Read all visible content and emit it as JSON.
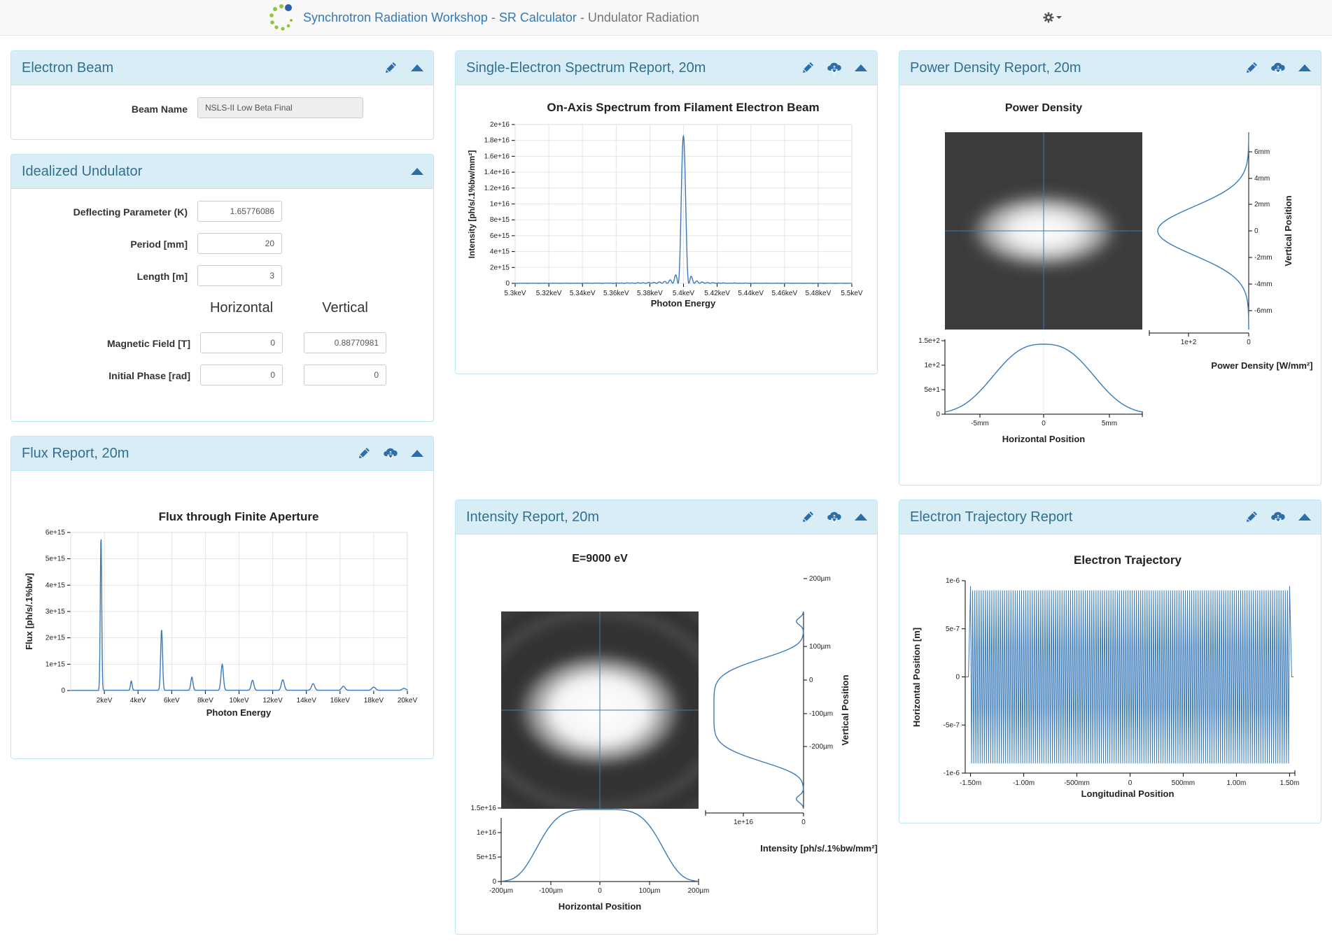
{
  "nav": {
    "app_title": "Synchrotron Radiation Workshop",
    "sep": "-",
    "calc_title": "SR Calculator",
    "sep2": "-",
    "page_title": "Undulator Radiation"
  },
  "electron_beam": {
    "title": "Electron Beam",
    "beam_name_label": "Beam Name",
    "beam_name_value": "NSLS-II Low Beta Final"
  },
  "undulator": {
    "title": "Idealized Undulator",
    "k_label": "Deflecting Parameter (K)",
    "k_value": "1.65776086",
    "period_label": "Period [mm]",
    "period_value": "20",
    "length_label": "Length [m]",
    "length_value": "3",
    "col_horizontal": "Horizontal",
    "col_vertical": "Vertical",
    "field_label": "Magnetic Field [T]",
    "field_h": "0",
    "field_v": "0.88770981",
    "phase_label": "Initial Phase [rad]",
    "phase_h": "0",
    "phase_v": "0"
  },
  "flux_report": {
    "title": "Flux Report, 20m",
    "chart_data": {
      "type": "line",
      "title": "Flux through Finite Aperture",
      "xlabel": "Photon Energy",
      "ylabel": "Flux [ph/s/.1%bw]",
      "xlim": [
        0,
        20000
      ],
      "ylim": [
        0,
        6000000000000000.0
      ],
      "x_ticks": [
        "2keV",
        "4keV",
        "6keV",
        "8keV",
        "10keV",
        "12keV",
        "14keV",
        "16keV",
        "18keV",
        "20keV"
      ],
      "y_ticks": [
        "0",
        "1e+15",
        "2e+15",
        "3e+15",
        "4e+15",
        "5e+15",
        "6e+15"
      ],
      "peaks": [
        {
          "x": 1800,
          "y": 5850000000000000.0
        },
        {
          "x": 3600,
          "y": 350000000000000.0
        },
        {
          "x": 5400,
          "y": 2300000000000000.0
        },
        {
          "x": 7200,
          "y": 500000000000000.0
        },
        {
          "x": 9000,
          "y": 980000000000000.0
        },
        {
          "x": 10800,
          "y": 380000000000000.0
        },
        {
          "x": 12600,
          "y": 400000000000000.0
        },
        {
          "x": 14400,
          "y": 250000000000000.0
        },
        {
          "x": 16200,
          "y": 150000000000000.0
        },
        {
          "x": 18000,
          "y": 120000000000000.0
        },
        {
          "x": 19800,
          "y": 70000000000000.0
        }
      ]
    }
  },
  "spectrum_report": {
    "title": "Single-Electron Spectrum Report, 20m",
    "chart_data": {
      "type": "line",
      "title": "On-Axis Spectrum from Filament Electron Beam",
      "xlabel": "Photon Energy",
      "ylabel": "Intensity [ph/s/.1%bw/mm²]",
      "xlim": [
        5300,
        5500
      ],
      "ylim": [
        0,
        2e+16
      ],
      "x_ticks": [
        "5.3keV",
        "5.32keV",
        "5.34keV",
        "5.36keV",
        "5.38keV",
        "5.4keV",
        "5.42keV",
        "5.44keV",
        "5.46keV",
        "5.48keV",
        "5.5keV"
      ],
      "y_ticks": [
        "0",
        "2e+15",
        "4e+15",
        "6e+15",
        "8e+15",
        "1e+16",
        "1.2e+16",
        "1.4e+16",
        "1.6e+16",
        "1.8e+16",
        "2e+16"
      ],
      "peak": {
        "x": 5400,
        "y": 1.85e+16
      }
    }
  },
  "power_report": {
    "title": "Power Density Report, 20m",
    "chart_data": {
      "type": "heatmap",
      "title": "Power Density",
      "xlabel": "Horizontal Position",
      "ylabel": "Vertical Position",
      "zlabel": "Power Density [W/mm²]",
      "x_ticks": [
        "-5mm",
        "0",
        "5mm"
      ],
      "y_ticks": [
        "6mm",
        "4mm",
        "2mm",
        "0",
        "-2mm",
        "-4mm",
        "-6mm"
      ],
      "h_cut_ticks": [
        "0",
        "5e+1",
        "1e+2",
        "1.5e+2"
      ],
      "v_cut_ticks": [
        "1e+2",
        "0"
      ]
    }
  },
  "intensity_report": {
    "title": "Intensity Report, 20m",
    "chart_data": {
      "type": "heatmap",
      "title": "E=9000 eV",
      "xlabel": "Horizontal Position",
      "ylabel": "Vertical Position",
      "zlabel": "Intensity [ph/s/.1%bw/mm²]",
      "x_ticks": [
        "-200µm",
        "-100µm",
        "0",
        "100µm",
        "200µm"
      ],
      "y_ticks": [
        "200µm",
        "100µm",
        "0",
        "-100µm",
        "-200µm"
      ],
      "h_cut_ticks": [
        "0",
        "5e+15",
        "1e+16",
        "1.5e+16"
      ],
      "v_cut_ticks": [
        "1e+16",
        "0"
      ]
    }
  },
  "trajectory_report": {
    "title": "Electron Trajectory Report",
    "chart_data": {
      "type": "line",
      "title": "Electron Trajectory",
      "xlabel": "Longitudinal Position",
      "ylabel": "Horizontal Position [m]",
      "xlim": [
        -1.55,
        1.55
      ],
      "ylim": [
        -1e-06,
        1e-06
      ],
      "x_ticks": [
        "-1.50m",
        "-1.00m",
        "-500mm",
        "0",
        "500mm",
        "1.00m",
        "1.50m"
      ],
      "y_ticks": [
        "1e-6",
        "5e-7",
        "0",
        "-5e-7",
        "-1e-6"
      ],
      "amplitude": 9e-07,
      "periods": 150
    }
  },
  "colors": {
    "line": "#3a7ab8",
    "heading_bg": "#d9edf7",
    "heading_text": "#31708f",
    "icon": "#2d6ea8"
  }
}
